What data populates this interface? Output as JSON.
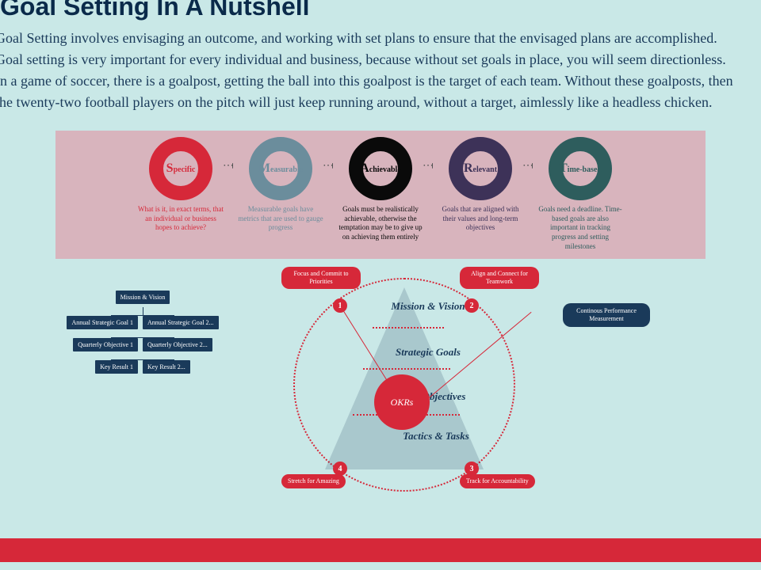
{
  "header": {
    "title": "Goal Setting In A Nutshell",
    "intro": "Goal Setting involves envisaging an outcome, and working with set plans to ensure that the envisaged plans are accomplished. Goal setting is very important for every individual and business, because without set goals in place, you will seem directionless. In a game of soccer, there is a goalpost, getting the ball into this goalpost is the target of each team. Without these goalposts, then the twenty-two football players on the pitch will just keep running around, without a target, aimlessly like a headless chicken."
  },
  "colors": {
    "background": "#c9e8e7",
    "card_bg": "#d8b4bd",
    "accent_red": "#d62839",
    "accent_navy": "#1a3a5a"
  },
  "smart": {
    "type": "infographic",
    "items": [
      {
        "first": "S",
        "rest": "pecific",
        "ring_color": "#d62839",
        "text_color": "#d62839",
        "desc": "What is it, in exact terms, that an individual or business hopes to achieve?"
      },
      {
        "first": "M",
        "rest": "easurable",
        "ring_color": "#6b8d9c",
        "text_color": "#6b8d9c",
        "desc": "Measurable goals have metrics that are used to gauge progress"
      },
      {
        "first": "A",
        "rest": "chievable",
        "ring_color": "#0a0a0a",
        "text_color": "#0a0a0a",
        "desc": "Goals must be realistically achievable, otherwise the temptation may be to give up on achieving them entirely"
      },
      {
        "first": "R",
        "rest": "elevant",
        "ring_color": "#3d3258",
        "text_color": "#3d3258",
        "desc": "Goals that are aligned with their values and long-term objectives"
      },
      {
        "first": "T",
        "rest": "ime-based",
        "ring_color": "#2e5d5d",
        "text_color": "#2e5d5d",
        "desc": "Goals need a deadline. Time-based goals are also important in tracking progress and setting milestones"
      }
    ]
  },
  "okr": {
    "type": "flowchart",
    "center_label": "OKRs",
    "pyramid_levels": [
      "Mission & Vision",
      "Strategic Goals",
      "Objectives",
      "Tactics & Tasks"
    ],
    "pills": [
      {
        "num": "1",
        "label": "Focus and Commit to Priorities"
      },
      {
        "num": "2",
        "label": "Align and Connect for Teamwork"
      },
      {
        "num": "3",
        "label": "Track for Accountability"
      },
      {
        "num": "4",
        "label": "Stretch for Amazing"
      }
    ],
    "side_pill": "Continous Performance Measurement",
    "tree": {
      "root": "Mission & Vision",
      "l2": [
        "Annual Strategic Goal 1",
        "Annual Strategic Goal 2..."
      ],
      "l3": [
        "Quarterly Objective 1",
        "Quarterly Objective 2..."
      ],
      "l4": [
        "Key Result 1",
        "Key Result 2..."
      ]
    }
  }
}
